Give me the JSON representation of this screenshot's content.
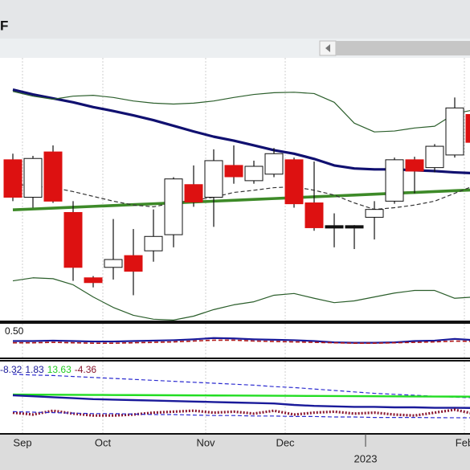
{
  "chart_data": [
    {
      "type": "candlestick",
      "title": "F",
      "categories": [
        null,
        null,
        null,
        null,
        null,
        null,
        null,
        null,
        null,
        null,
        null,
        null,
        null,
        null,
        null,
        null,
        null,
        null,
        null,
        null,
        null,
        null,
        null,
        null
      ],
      "open": [
        14.16,
        13.3,
        14.34,
        12.95,
        11.45,
        11.69,
        11.96,
        12.07,
        12.44,
        13.59,
        13.3,
        14.03,
        13.68,
        13.83,
        14.16,
        13.17,
        12.62,
        12.62,
        12.84,
        13.21,
        14.16,
        13.98,
        14.27,
        15.2
      ],
      "high": [
        14.3,
        14.25,
        14.49,
        13.21,
        11.49,
        12.8,
        12.57,
        13.02,
        13.76,
        14.03,
        14.4,
        14.49,
        14.14,
        14.43,
        14.21,
        14.12,
        12.93,
        12.66,
        13.21,
        14.21,
        14.23,
        14.52,
        15.59,
        15.4
      ],
      "low": [
        13.21,
        13.06,
        13.17,
        11.38,
        11.23,
        11.41,
        11.05,
        11.82,
        12.15,
        13.08,
        12.62,
        13.61,
        13.61,
        13.76,
        13.06,
        12.53,
        12.15,
        12.11,
        12.33,
        13.15,
        13.39,
        13.87,
        14.21,
        14.49
      ],
      "close": [
        13.3,
        14.19,
        13.21,
        11.69,
        11.34,
        11.87,
        11.6,
        12.4,
        13.72,
        13.19,
        14.14,
        13.77,
        14.01,
        14.3,
        13.15,
        12.6,
        12.6,
        12.59,
        13.02,
        14.16,
        13.9,
        14.47,
        15.35,
        14.56
      ],
      "up_color": "#ffffff",
      "down_color": "#dd1111",
      "doji_color": "#111111",
      "series": [
        {
          "color": "#101070",
          "style": "solid",
          "width": 3.2,
          "values": [
            15.77,
            15.66,
            15.57,
            15.48,
            15.37,
            15.28,
            15.18,
            15.07,
            14.94,
            14.81,
            14.69,
            14.6,
            14.49,
            14.38,
            14.3,
            14.18,
            14.03,
            13.96,
            13.94,
            13.94,
            13.92,
            13.9,
            13.87,
            13.85
          ]
        },
        {
          "color": "#3d8a28",
          "style": "solid",
          "width": 3.6,
          "values": [
            13.01,
            13.03,
            13.05,
            13.07,
            13.09,
            13.11,
            13.13,
            13.15,
            13.17,
            13.19,
            13.21,
            13.23,
            13.25,
            13.27,
            13.29,
            13.31,
            13.33,
            13.35,
            13.37,
            13.39,
            13.41,
            13.43,
            13.45,
            13.47
          ]
        },
        {
          "color": "#333333",
          "style": "dashed",
          "width": 1.2,
          "values": [
            13.61,
            13.55,
            13.52,
            13.43,
            13.32,
            13.21,
            13.12,
            13.08,
            13.17,
            13.23,
            13.3,
            13.41,
            13.46,
            13.52,
            13.54,
            13.46,
            13.35,
            13.17,
            13.02,
            13.06,
            13.12,
            13.21,
            13.39,
            13.57
          ]
        },
        {
          "color": "#2b5e2b",
          "style": "solid",
          "width": 1.2,
          "values": [
            15.73,
            15.62,
            15.55,
            15.62,
            15.64,
            15.59,
            15.51,
            15.46,
            15.44,
            15.46,
            15.51,
            15.59,
            15.66,
            15.7,
            15.71,
            15.68,
            15.48,
            15.0,
            14.8,
            14.82,
            14.89,
            14.93,
            15.22,
            15.31
          ]
        },
        {
          "color": "#2b5e2b",
          "style": "solid",
          "width": 1.2,
          "values": [
            11.38,
            11.45,
            11.43,
            11.29,
            11.01,
            10.77,
            10.59,
            10.5,
            10.48,
            10.57,
            10.72,
            10.83,
            10.9,
            11.05,
            11.09,
            10.98,
            10.88,
            10.92,
            11.01,
            11.1,
            11.16,
            11.16,
            10.98,
            11.01
          ]
        }
      ],
      "ylim": [
        10.45,
        16.5
      ],
      "xticks": [
        {
          "value": 0.48,
          "label": "Sep"
        },
        {
          "value": 4.48,
          "label": "Oct"
        },
        {
          "value": 9.6,
          "label": "Nov"
        },
        {
          "value": 13.56,
          "label": "Dec"
        },
        {
          "value": 22.48,
          "label": "Feb"
        }
      ],
      "year_ticks": [
        {
          "value": 17.56,
          "label": "2023"
        }
      ],
      "grid": true
    },
    {
      "type": "line",
      "label": "0.50",
      "series": [
        {
          "color": "#1a1a9a",
          "style": "solid",
          "width": 2.2,
          "values": [
            0,
            0,
            0.05,
            0,
            -0.05,
            -0.05,
            0,
            0.05,
            0.1,
            0.2,
            0.35,
            0.3,
            0.2,
            0.15,
            0.1,
            0,
            -0.15,
            -0.2,
            -0.2,
            -0.15,
            0,
            0.05,
            0.25,
            0.1
          ]
        },
        {
          "color": "#b01818",
          "style": "dashed",
          "width": 1.6,
          "values": [
            -0.2,
            -0.2,
            -0.15,
            -0.2,
            -0.25,
            -0.25,
            -0.2,
            -0.15,
            -0.1,
            0,
            0.1,
            0.1,
            0,
            -0.05,
            -0.1,
            -0.15,
            -0.2,
            -0.25,
            -0.25,
            -0.2,
            -0.15,
            -0.1,
            0,
            -0.05
          ]
        }
      ],
      "ylim": [
        -2,
        2
      ],
      "grid": true
    },
    {
      "type": "line",
      "readouts": [
        {
          "text": "-8.32",
          "color": "#1a1a9a"
        },
        {
          "text": "1.83",
          "color": "#1a1a9a"
        },
        {
          "text": "13.63",
          "color": "#22cc22"
        },
        {
          "text": "-4.36",
          "color": "#8a1830"
        }
      ],
      "series": [
        {
          "color": "#2a2ad0",
          "style": "dashed",
          "width": 1.2,
          "values": [
            37,
            36,
            35.5,
            34.5,
            33.5,
            32.5,
            31.5,
            30.5,
            29.5,
            28.5,
            27.5,
            26.5,
            25.5,
            24,
            23,
            21.5,
            20,
            18.5,
            17,
            16,
            15,
            14,
            13,
            12.5
          ]
        },
        {
          "color": "#22dd22",
          "style": "solid",
          "width": 2.4,
          "values": [
            15.8,
            15.7,
            15.6,
            15.5,
            15.4,
            15.3,
            15.2,
            15.1,
            15,
            14.9,
            14.8,
            14.7,
            14.6,
            14.5,
            14.4,
            14.3,
            14.2,
            14.1,
            14,
            13.9,
            13.8,
            13.7,
            13.65,
            13.63
          ]
        },
        {
          "color": "#1a1a9a",
          "style": "solid",
          "width": 2.4,
          "values": [
            15,
            14,
            13,
            12,
            11,
            10.5,
            10,
            9.5,
            9,
            8.5,
            8,
            7.5,
            7,
            6.5,
            5,
            4,
            3.5,
            3,
            3,
            2.5,
            2.5,
            2,
            2,
            1.83
          ]
        },
        {
          "color": "#8a1830",
          "style": "dotted",
          "width": 3.2,
          "values": [
            -3,
            -5,
            -1,
            -4,
            -6,
            -6,
            -5,
            -3,
            -2,
            -1,
            -3,
            -2,
            -4,
            -1,
            -5,
            -3,
            -2,
            -4,
            -3,
            -5,
            -6,
            -3,
            0,
            -4.36
          ]
        },
        {
          "color": "#2a2ad0",
          "style": "dashed",
          "width": 1.2,
          "values": [
            -2,
            -2.5,
            -3,
            -3.5,
            -4,
            -4,
            -4.5,
            -5,
            -5,
            -5.5,
            -6,
            -6,
            -6.5,
            -6.5,
            -7,
            -7,
            -7.5,
            -7.5,
            -8,
            -8,
            -8,
            -8.2,
            -8.3,
            -8.32
          ]
        }
      ],
      "ylim": [
        -25,
        50
      ],
      "grid": true
    }
  ]
}
